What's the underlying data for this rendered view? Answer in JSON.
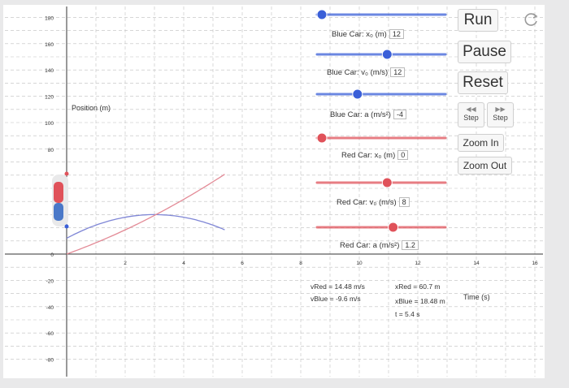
{
  "axes": {
    "y_ticks": [
      "180",
      "160",
      "140",
      "120",
      "100",
      "80",
      "0",
      "-20",
      "-40",
      "-60",
      "-80"
    ],
    "x_ticks": [
      "2",
      "4",
      "6",
      "8",
      "10",
      "12",
      "14",
      "16"
    ],
    "y_label": "Position (m)",
    "x_label": "Time (s)"
  },
  "controls": {
    "blue_x0": {
      "label": "Blue Car: x₀ (m)",
      "value": "12",
      "fraction": 0.0
    },
    "blue_v0": {
      "label": "Blue Car: v₀ (m/s)",
      "value": "12",
      "fraction": 0.55
    },
    "blue_a": {
      "label": "Blue Car: a (m/s²)",
      "value": "-4",
      "fraction": 0.3
    },
    "red_x0": {
      "label": "Red Car: x₀ (m)",
      "value": "0",
      "fraction": 0.0
    },
    "red_v0": {
      "label": "Red Car: v₀ (m/s)",
      "value": "8",
      "fraction": 0.55
    },
    "red_a": {
      "label": "Red Car: a (m/s²)",
      "value": "1.2",
      "fraction": 0.6
    }
  },
  "buttons": {
    "run": "Run",
    "pause": "Pause",
    "reset": "Reset",
    "step_back": "Step",
    "step_forward": "Step",
    "zoom_in": "Zoom In",
    "zoom_out": "Zoom Out"
  },
  "readouts": {
    "v_red": "vRed = 14.48 m/s",
    "v_blue": "vBlue = -9.6 m/s",
    "x_red": "xRed = 60.7 m",
    "x_blue": "xBlue = 18.48 m",
    "t": "t = 5.4 s"
  },
  "colors": {
    "blue": "#3a5fd8",
    "red": "#e0525a",
    "blue_curve": "#7f86d6",
    "red_curve": "#e38a96",
    "grid": "#bfbfbf"
  },
  "icons": {
    "refresh": "refresh-icon",
    "step_back": "step-back-icon",
    "step_forward": "step-forward-icon"
  }
}
